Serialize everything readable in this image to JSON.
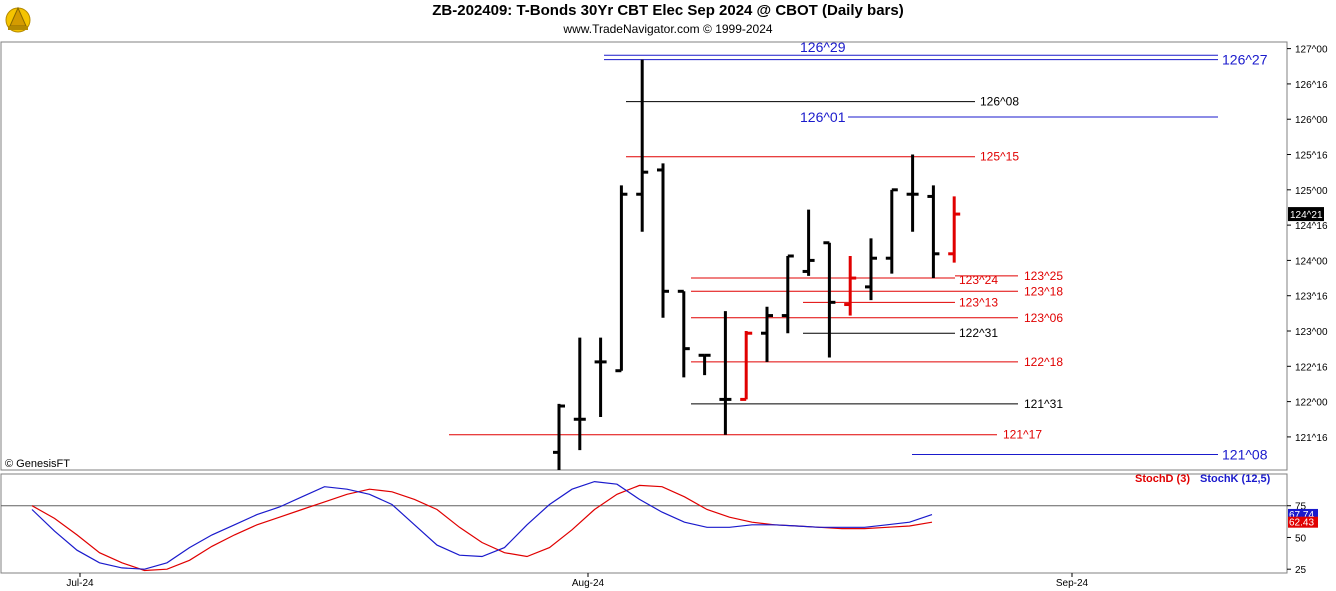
{
  "header": {
    "title": "ZB-202409:  T-Bonds 30Yr CBT Elec Sep 2024 @ CBOT  (Daily bars)",
    "subtitle": "www.TradeNavigator.com © 1999-2024",
    "copyright": "© GenesisFT"
  },
  "colors": {
    "bar": "#000000",
    "bar_highlight": "#e00000",
    "level_red": "#e00000",
    "level_blue": "#1a1acc",
    "level_black": "#000000",
    "stoch_d": "#e00000",
    "stoch_k": "#1a1acc",
    "current_price_bg": "#000000"
  },
  "chart_data": [
    {
      "type": "ohlc",
      "price_format": "handle^32nds",
      "y_ticks": [
        "121^16",
        "122^00",
        "122^16",
        "123^00",
        "123^16",
        "124^00",
        "124^16",
        "125^00",
        "125^16",
        "126^00",
        "126^16",
        "127^00"
      ],
      "ylim": [
        "121^01",
        "127^03"
      ],
      "x_ticks": [
        "Jul-24",
        "Aug-24",
        "Sep-24"
      ],
      "current_price": "124^21",
      "bars": [
        {
          "o": "121^09",
          "h": "121^31",
          "l": "120^30",
          "c": "121^30",
          "color": "black"
        },
        {
          "o": "121^24",
          "h": "122^29",
          "l": "121^10",
          "c": "121^24",
          "color": "black"
        },
        {
          "o": "122^18",
          "h": "122^29",
          "l": "121^25",
          "c": "122^18",
          "color": "black"
        },
        {
          "o": "122^14",
          "h": "125^02",
          "l": "122^14",
          "c": "124^30",
          "color": "black"
        },
        {
          "o": "124^30",
          "h": "126^27",
          "l": "124^13",
          "c": "125^08",
          "color": "black"
        },
        {
          "o": "125^09",
          "h": "125^12",
          "l": "123^06",
          "c": "123^18",
          "color": "black"
        },
        {
          "o": "123^18",
          "h": "123^18",
          "l": "122^11",
          "c": "122^24",
          "color": "black"
        },
        {
          "o": "122^21",
          "h": "122^21",
          "l": "122^12",
          "c": "122^21",
          "color": "black"
        },
        {
          "o": "122^01",
          "h": "123^09",
          "l": "121^17",
          "c": "122^01",
          "color": "black"
        },
        {
          "o": "122^01",
          "h": "123^00",
          "l": "122^01",
          "c": "122^31",
          "color": "red"
        },
        {
          "o": "122^31",
          "h": "123^11",
          "l": "122^18",
          "c": "123^07",
          "color": "black"
        },
        {
          "o": "123^07",
          "h": "124^02",
          "l": "122^31",
          "c": "124^02",
          "color": "black"
        },
        {
          "o": "123^27",
          "h": "124^23",
          "l": "123^25",
          "c": "124^00",
          "color": "black"
        },
        {
          "o": "124^08",
          "h": "124^08",
          "l": "122^20",
          "c": "123^13",
          "color": "black"
        },
        {
          "o": "123^12",
          "h": "124^02",
          "l": "123^07",
          "c": "123^24",
          "color": "red"
        },
        {
          "o": "123^20",
          "h": "124^10",
          "l": "123^14",
          "c": "124^01",
          "color": "black"
        },
        {
          "o": "124^01",
          "h": "125^00",
          "l": "123^26",
          "c": "125^00",
          "color": "black"
        },
        {
          "o": "124^30",
          "h": "125^16",
          "l": "124^13",
          "c": "124^30",
          "color": "black"
        },
        {
          "o": "124^29",
          "h": "125^02",
          "l": "123^24",
          "c": "124^03",
          "color": "black"
        },
        {
          "o": "124^03",
          "h": "124^29",
          "l": "123^31",
          "c": "124^21",
          "color": "red"
        }
      ],
      "levels": [
        {
          "label": "126^29",
          "price": "126^29",
          "color": "blue",
          "from_bar": 4
        },
        {
          "label": "126^27",
          "price": "126^27",
          "color": "blue",
          "from_bar": 4
        },
        {
          "label": "126^08",
          "price": "126^08",
          "color": "black",
          "from_bar": 4
        },
        {
          "label": "126^01",
          "price": "126^01",
          "color": "blue",
          "from_bar": 8
        },
        {
          "label": "125^15",
          "price": "125^15",
          "color": "red",
          "from_bar": 4
        },
        {
          "label": "123^24",
          "price": "123^24",
          "color": "red",
          "from_bar": 8
        },
        {
          "label": "123^25",
          "price": "123^25",
          "color": "red",
          "from_bar": 18
        },
        {
          "label": "123^18",
          "price": "123^18",
          "color": "red",
          "from_bar": 8
        },
        {
          "label": "123^13",
          "price": "123^13",
          "color": "red",
          "from_bar": 13
        },
        {
          "label": "123^06",
          "price": "123^06",
          "color": "red",
          "from_bar": 8
        },
        {
          "label": "122^31",
          "price": "122^31",
          "color": "black",
          "from_bar": 13
        },
        {
          "label": "122^18",
          "price": "122^18",
          "color": "red",
          "from_bar": 8
        },
        {
          "label": "121^31",
          "price": "121^31",
          "color": "black",
          "from_bar": 8
        },
        {
          "label": "121^17",
          "price": "121^17",
          "color": "red",
          "from_bar": 0
        },
        {
          "label": "121^08",
          "price": "121^08",
          "color": "blue",
          "from_bar": 16
        }
      ]
    },
    {
      "type": "line",
      "y_ticks": [
        25,
        50,
        75
      ],
      "ylim": [
        22,
        100
      ],
      "reference_line": 75,
      "legend": [
        "StochD (3)",
        "StochK (12,5)"
      ],
      "latest_values": {
        "k": "67.74",
        "d": "62.43"
      },
      "series": [
        {
          "name": "StochD (3)",
          "color": "red",
          "values": [
            75,
            65,
            52,
            38,
            30,
            24,
            25,
            32,
            43,
            52,
            60,
            66,
            72,
            78,
            84,
            88,
            86,
            80,
            72,
            58,
            46,
            38,
            35,
            42,
            56,
            72,
            84,
            91,
            90,
            82,
            72,
            66,
            62,
            60,
            59,
            58,
            57,
            57,
            58,
            59,
            62
          ]
        },
        {
          "name": "StochK (12,5)",
          "color": "blue",
          "values": [
            72,
            55,
            40,
            30,
            26,
            25,
            30,
            42,
            52,
            60,
            68,
            74,
            82,
            90,
            88,
            84,
            76,
            60,
            44,
            36,
            35,
            42,
            60,
            76,
            88,
            94,
            92,
            80,
            70,
            62,
            58,
            58,
            60,
            60,
            59,
            58,
            58,
            58,
            60,
            62,
            68
          ]
        }
      ]
    }
  ]
}
